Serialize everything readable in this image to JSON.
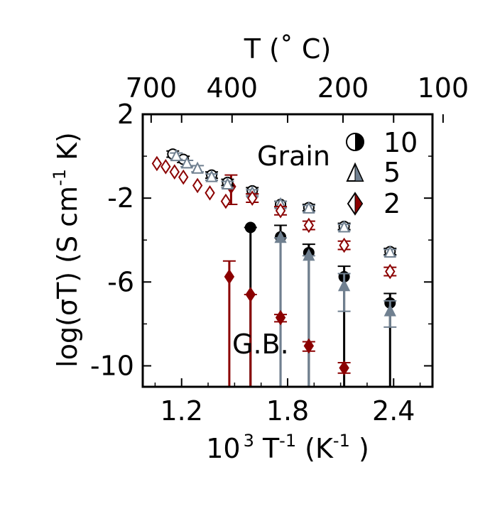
{
  "chart_data": {
    "type": "scatter",
    "xlabel_base": "10",
    "xlabel_exp": "3",
    "xlabel_mid": " T",
    "xlabel_exp2": "-1",
    "xlabel_paren": " (K",
    "xlabel_exp3": "-1",
    "xlabel_close": " )",
    "ylabel_main": "log(σT) (S cm",
    "ylabel_exp": "-1",
    "ylabel_end": " K)",
    "top_xlabel": "T (˚ C)",
    "xlim": [
      0.98,
      2.62
    ],
    "ylim": [
      -11,
      2
    ],
    "x_ticks": [
      1.2,
      1.8,
      2.4
    ],
    "x_tick_labels": [
      "1.2",
      "1.8",
      "2.4"
    ],
    "y_ticks": [
      2,
      -2,
      -6,
      -10
    ],
    "y_tick_labels": [
      "2",
      "-2",
      "-6",
      "-10"
    ],
    "top_ticks": [
      700,
      400,
      200,
      100
    ],
    "top_tick_labels": [
      "700",
      "400",
      "200",
      "100"
    ],
    "annotations": {
      "grain": "Grain",
      "gb": "G.B."
    },
    "legend": {
      "placement": "top-right",
      "entries": [
        "10",
        "5",
        "2"
      ]
    },
    "colors": {
      "s10": "#000000",
      "s5": "#708090",
      "s2": "#8b0000"
    },
    "series": [
      {
        "name": "10",
        "region": "grain",
        "marker": "circle-open",
        "points": [
          {
            "x": 1.15,
            "y": 0.1,
            "err": 0.15
          },
          {
            "x": 1.21,
            "y": -0.15,
            "err": 0.15
          },
          {
            "x": 1.37,
            "y": -0.9,
            "err": 0.15
          },
          {
            "x": 1.46,
            "y": -1.25,
            "err": 0.15
          },
          {
            "x": 1.6,
            "y": -1.65,
            "err": 0.15
          },
          {
            "x": 1.76,
            "y": -2.3,
            "err": 0.15
          },
          {
            "x": 1.92,
            "y": -2.45,
            "err": 0.15
          },
          {
            "x": 2.12,
            "y": -3.35,
            "err": 0.15
          },
          {
            "x": 2.38,
            "y": -4.55,
            "err": 0.15
          }
        ]
      },
      {
        "name": "5",
        "region": "grain",
        "marker": "triangle-open",
        "points": [
          {
            "x": 1.17,
            "y": 0.0,
            "err": 0.15
          },
          {
            "x": 1.23,
            "y": -0.35,
            "err": 0.15
          },
          {
            "x": 1.29,
            "y": -0.6,
            "err": 0.15
          },
          {
            "x": 1.37,
            "y": -1.0,
            "err": 0.15
          },
          {
            "x": 1.46,
            "y": -1.35,
            "err": 0.15
          },
          {
            "x": 1.6,
            "y": -1.75,
            "err": 0.15
          },
          {
            "x": 1.76,
            "y": -2.3,
            "err": 0.15
          },
          {
            "x": 1.92,
            "y": -2.5,
            "err": 0.15
          },
          {
            "x": 2.12,
            "y": -3.4,
            "err": 0.15
          },
          {
            "x": 2.38,
            "y": -4.6,
            "err": 0.15
          }
        ]
      },
      {
        "name": "2",
        "region": "grain",
        "marker": "diamond-open",
        "points": [
          {
            "x": 1.06,
            "y": -0.35,
            "err": 0
          },
          {
            "x": 1.11,
            "y": -0.5,
            "err": 0
          },
          {
            "x": 1.16,
            "y": -0.75,
            "err": 0
          },
          {
            "x": 1.21,
            "y": -1.0,
            "err": 0
          },
          {
            "x": 1.29,
            "y": -1.4,
            "err": 0
          },
          {
            "x": 1.36,
            "y": -1.75,
            "err": 0
          },
          {
            "x": 1.45,
            "y": -2.15,
            "err": 0
          },
          {
            "x": 1.6,
            "y": -2.0,
            "err": 0.2
          },
          {
            "x": 1.76,
            "y": -2.6,
            "err": 0.2
          },
          {
            "x": 1.92,
            "y": -3.3,
            "err": 0.2
          },
          {
            "x": 2.12,
            "y": -4.25,
            "err": 0.2
          },
          {
            "x": 2.38,
            "y": -5.5,
            "err": 0.2
          }
        ]
      },
      {
        "name": "10",
        "region": "gb",
        "marker": "circle-filled",
        "points": [
          {
            "x": 1.59,
            "y": -3.4,
            "lo": -11.2,
            "hi": -3.4
          },
          {
            "x": 1.76,
            "y": -3.85,
            "lo": -11.2,
            "hi": -3.3
          },
          {
            "x": 1.92,
            "y": -4.6,
            "lo": -11.2,
            "hi": -4.2
          },
          {
            "x": 2.12,
            "y": -5.75,
            "lo": -11.2,
            "hi": -5.25
          },
          {
            "x": 2.38,
            "y": -7.0,
            "lo": -11.2,
            "hi": -6.55
          }
        ]
      },
      {
        "name": "5",
        "region": "gb",
        "marker": "triangle-filled",
        "points": [
          {
            "x": 1.76,
            "y": -3.9,
            "lo": -11.2,
            "hi": -3.9
          },
          {
            "x": 1.92,
            "y": -4.75,
            "lo": -11.2,
            "hi": -4.75
          },
          {
            "x": 2.12,
            "y": -6.2,
            "lo": -7.4,
            "hi": -5.6
          },
          {
            "x": 2.38,
            "y": -7.4,
            "lo": -8.15,
            "hi": -6.9
          }
        ]
      },
      {
        "name": "2",
        "region": "gb",
        "marker": "diamond-filled",
        "points": [
          {
            "x": 1.48,
            "y": -1.45,
            "lo": -2.3,
            "hi": -0.9
          },
          {
            "x": 1.47,
            "y": -5.75,
            "lo": -11.2,
            "hi": -5.0
          },
          {
            "x": 1.59,
            "y": -6.6,
            "lo": -11.2,
            "hi": -6.6
          },
          {
            "x": 1.76,
            "y": -7.7,
            "lo": -7.9,
            "hi": -7.55
          },
          {
            "x": 1.92,
            "y": -9.05,
            "lo": -9.3,
            "hi": -8.85
          },
          {
            "x": 2.12,
            "y": -10.1,
            "lo": -10.35,
            "hi": -9.85
          }
        ]
      }
    ]
  }
}
